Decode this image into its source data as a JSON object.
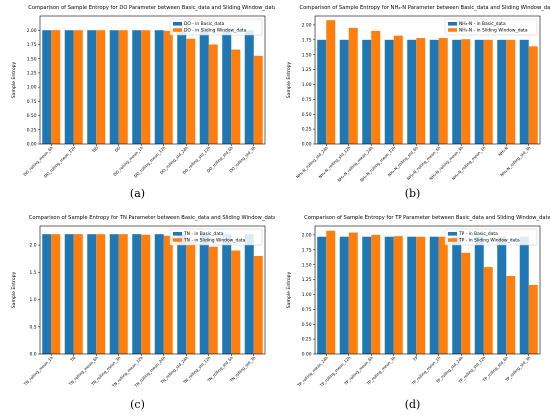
{
  "colors": {
    "basic": "#1f77b4",
    "sliding": "#ff7f0e"
  },
  "panels": [
    {
      "caption": "(a)",
      "chart_data": {
        "type": "bar",
        "title": "Comparison of Sample Entropy for DO Parameter between Basic_data and Sliding Window_data",
        "ylabel": "Sample Entropy",
        "ylim": [
          0,
          2.25
        ],
        "yticks": [
          0.0,
          0.25,
          0.5,
          0.75,
          1.0,
          1.25,
          1.5,
          1.75,
          2.0
        ],
        "legend_position": "top-right",
        "categories": [
          "DO_rolling_mean_6h",
          "DO_rolling_mean_12h",
          "DO",
          "DO",
          "DO_rolling_mean_1h",
          "DO_rolling_mean_12h",
          "DO_rolling_std_24h",
          "DO_rolling_std_12h",
          "DO_rolling_std_6h",
          "DO_rolling_std_3h"
        ],
        "series": [
          {
            "name": "DO - in Basic_data",
            "values": [
              2.0,
              2.0,
              2.0,
              2.0,
              2.0,
              2.0,
              2.0,
              2.0,
              2.0,
              2.0
            ]
          },
          {
            "name": "DO - in Sliding Window_data",
            "values": [
              2.0,
              2.0,
              2.0,
              2.0,
              2.0,
              1.99,
              1.85,
              1.75,
              1.66,
              1.55
            ]
          }
        ]
      }
    },
    {
      "caption": "(b)",
      "chart_data": {
        "type": "bar",
        "title": "Comparison of Sample Entropy for NH₄-N Parameter between Basic_data and Sliding Window_data",
        "ylabel": "Sample Entropy",
        "ylim": [
          0,
          2.15
        ],
        "yticks": [
          0.0,
          0.25,
          0.5,
          0.75,
          1.0,
          1.25,
          1.5,
          1.75,
          2.0
        ],
        "legend_position": "top-right",
        "categories": [
          "NH₄-N_rolling_std_24h",
          "NH₄-N_rolling_std_12h",
          "NH₄-N_rolling_mean_24h",
          "NH₄-N_rolling_mean_12h",
          "NH₄-N_rolling_std_6h",
          "NH₄-N_rolling_mean_6h",
          "NH₄-N_rolling_mean_3h",
          "NH₄-N_rolling_mean_1h",
          "NH₄-N",
          "NH₄-N_rolling_std_3h"
        ],
        "series": [
          {
            "name": "NH₄-N - in Basic_data",
            "values": [
              1.75,
              1.75,
              1.75,
              1.75,
              1.75,
              1.75,
              1.75,
              1.75,
              1.75,
              1.75
            ]
          },
          {
            "name": "NH₄-N - in Sliding Window_data",
            "values": [
              2.08,
              1.95,
              1.9,
              1.82,
              1.78,
              1.78,
              1.76,
              1.75,
              1.75,
              1.64
            ]
          }
        ]
      }
    },
    {
      "caption": "(c)",
      "chart_data": {
        "type": "bar",
        "title": "Comparison of Sample Entropy for TN Parameter between Basic_data and Sliding Window_data",
        "ylabel": "Sample Entropy",
        "ylim": [
          0,
          2.35
        ],
        "yticks": [
          0.0,
          0.5,
          1.0,
          1.5,
          2.0
        ],
        "legend_position": "top-right",
        "categories": [
          "TN_rolling_mean_1h",
          "TN",
          "TN_rolling_mean_6h",
          "TN_rolling_mean_3h",
          "TN_rolling_mean_12h",
          "TN_rolling_mean_24h",
          "TN_rolling_std_24h",
          "TN_rolling_std_12h",
          "TN_rolling_std_6h",
          "TN_rolling_std_3h"
        ],
        "series": [
          {
            "name": "TN - in Basic_data",
            "values": [
              2.2,
              2.2,
              2.2,
              2.2,
              2.2,
              2.2,
              2.2,
              2.2,
              2.2,
              2.2
            ]
          },
          {
            "name": "TN - in Sliding Window_data",
            "values": [
              2.2,
              2.2,
              2.2,
              2.2,
              2.19,
              2.17,
              2.05,
              1.97,
              1.9,
              1.8
            ]
          }
        ]
      }
    },
    {
      "caption": "(d)",
      "chart_data": {
        "type": "bar",
        "title": "Comparison of Sample Entropy for TP Parameter between Basic_data and Sliding Window_data",
        "ylabel": "Sample Entropy",
        "ylim": [
          0,
          2.15
        ],
        "yticks": [
          0.0,
          0.25,
          0.5,
          0.75,
          1.0,
          1.25,
          1.5,
          1.75,
          2.0
        ],
        "legend_position": "top-right",
        "categories": [
          "TP_rolling_mean_24h",
          "TP_rolling_mean_12h",
          "TP_rolling_mean_6h",
          "TP_rolling_mean_3h",
          "TP",
          "TP_rolling_mean_1h",
          "TP_rolling_std_24h",
          "TP_rolling_std_12h",
          "TP_rolling_std_6h",
          "TP_rolling_std_3h"
        ],
        "series": [
          {
            "name": "TP - in Basic_data",
            "values": [
              1.97,
              1.97,
              1.97,
              1.97,
              1.97,
              1.97,
              1.97,
              1.97,
              1.97,
              1.97
            ]
          },
          {
            "name": "TP - in Sliding Window_data",
            "values": [
              2.07,
              2.04,
              2.0,
              1.98,
              1.97,
              1.97,
              1.7,
              1.46,
              1.31,
              1.16
            ]
          }
        ]
      }
    }
  ]
}
